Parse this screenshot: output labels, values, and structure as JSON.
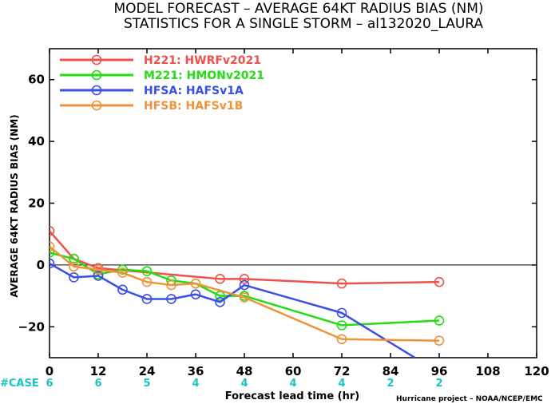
{
  "title": {
    "line1": "MODEL FORECAST – AVERAGE 64KT RADIUS BIAS (NM)",
    "line2": "STATISTICS FOR A SINGLE STORM – al132020_LAURA"
  },
  "credit": "Hurricane project – NOAA/NCEP/EMC",
  "cases": {
    "label": "#CASE",
    "color": "#19c3c3",
    "values": [
      {
        "x": 0,
        "n": "6"
      },
      {
        "x": 12,
        "n": "6"
      },
      {
        "x": 24,
        "n": "5"
      },
      {
        "x": 36,
        "n": "4"
      },
      {
        "x": 48,
        "n": "4"
      },
      {
        "x": 60,
        "n": "4"
      },
      {
        "x": 72,
        "n": "4"
      },
      {
        "x": 84,
        "n": "2"
      },
      {
        "x": 96,
        "n": "2"
      }
    ]
  },
  "chart_data": {
    "type": "line",
    "xlabel": "Forecast lead time (hr)",
    "ylabel": "AVERAGE 64KT RADIUS BIAS (NM)",
    "xlim": [
      0,
      120
    ],
    "ylim": [
      -30,
      70
    ],
    "xticks": [
      0,
      12,
      24,
      36,
      48,
      60,
      72,
      84,
      96,
      108,
      120
    ],
    "yticks": [
      -20,
      0,
      20,
      40,
      60
    ],
    "zero_line": true,
    "legend_placement": "top-left",
    "series": [
      {
        "name": "H221: HWRFv2021",
        "color": "#f0504a",
        "x": [
          0,
          6,
          12,
          42,
          48,
          72,
          96
        ],
        "y": [
          11,
          2,
          -1,
          -4.5,
          -4.5,
          -6,
          -5.5
        ]
      },
      {
        "name": "M221: HMONv2021",
        "color": "#22dd11",
        "x": [
          0,
          6,
          12,
          18,
          24,
          30,
          36,
          42,
          48,
          72,
          96
        ],
        "y": [
          4,
          2,
          -3,
          -1.5,
          -2,
          -5,
          -6,
          -10,
          -10,
          -19.5,
          -18
        ]
      },
      {
        "name": "HFSA: HAFSv1A",
        "color": "#3a4ee8",
        "x": [
          0,
          6,
          12,
          18,
          24,
          30,
          36,
          42,
          48,
          72,
          90
        ],
        "y": [
          0.5,
          -4,
          -3.5,
          -8,
          -11,
          -11,
          -9.5,
          -12,
          -6.5,
          -15.5,
          -30
        ]
      },
      {
        "name": "HFSB: HAFSv1B",
        "color": "#f0923a",
        "x": [
          0,
          6,
          12,
          18,
          24,
          30,
          36,
          48,
          72,
          96
        ],
        "y": [
          6,
          -0.5,
          -1.5,
          -2.5,
          -5.5,
          -6.5,
          -6,
          -10.5,
          -24,
          -24.5
        ]
      }
    ],
    "markers": [
      [
        true,
        true,
        true,
        true,
        true,
        true,
        true
      ],
      [
        true,
        true,
        true,
        true,
        true,
        true,
        true,
        true,
        true,
        true,
        true
      ],
      [
        true,
        true,
        true,
        true,
        true,
        true,
        true,
        true,
        true,
        true,
        false
      ],
      [
        true,
        true,
        true,
        true,
        true,
        true,
        true,
        true,
        true,
        true
      ]
    ]
  }
}
